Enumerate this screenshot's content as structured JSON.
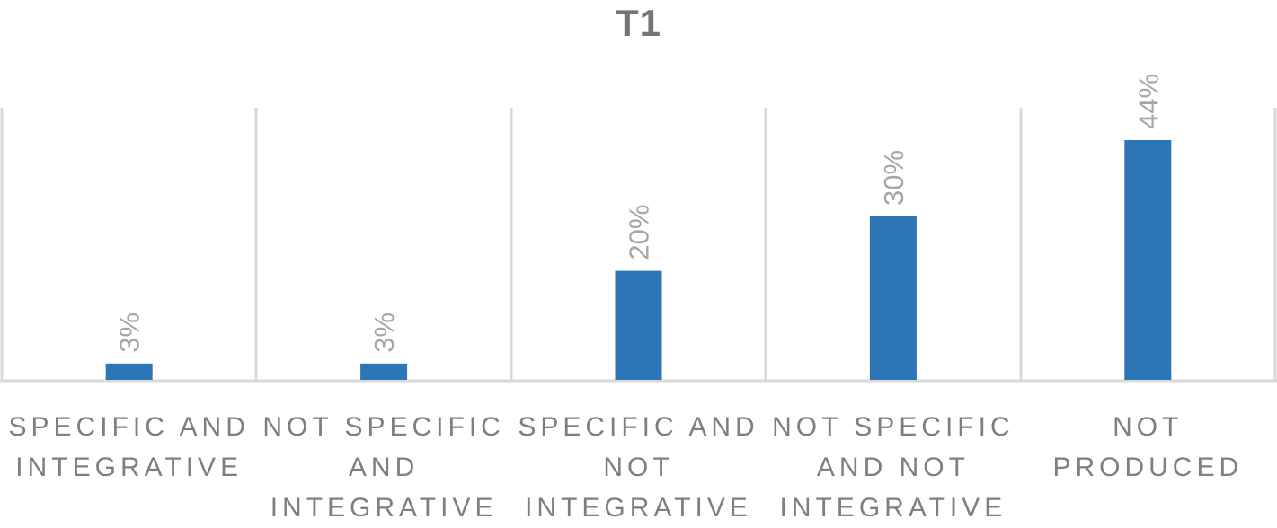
{
  "chart_data": {
    "type": "bar",
    "title": "T1",
    "categories": [
      "SPECIFIC AND INTEGRATIVE",
      "NOT SPECIFIC AND INTEGRATIVE",
      "SPECIFIC AND NOT INTEGRATIVE",
      "NOT SPECIFIC AND NOT INTEGRATIVE",
      "NOT PRODUCED"
    ],
    "values": [
      3,
      3,
      20,
      30,
      44
    ],
    "data_labels": [
      "3%",
      "3%",
      "20%",
      "30%",
      "44%"
    ],
    "unit": "%",
    "xlabel": "",
    "ylabel": "",
    "ylim": [
      0,
      50
    ],
    "grid": "vertical category separators",
    "legend": "none",
    "colors": {
      "bar": "#2E75B6",
      "label": "#A6A6A6",
      "category_text": "#7F7F7F",
      "title": "#767676",
      "gridline": "#D9D9D9"
    }
  }
}
